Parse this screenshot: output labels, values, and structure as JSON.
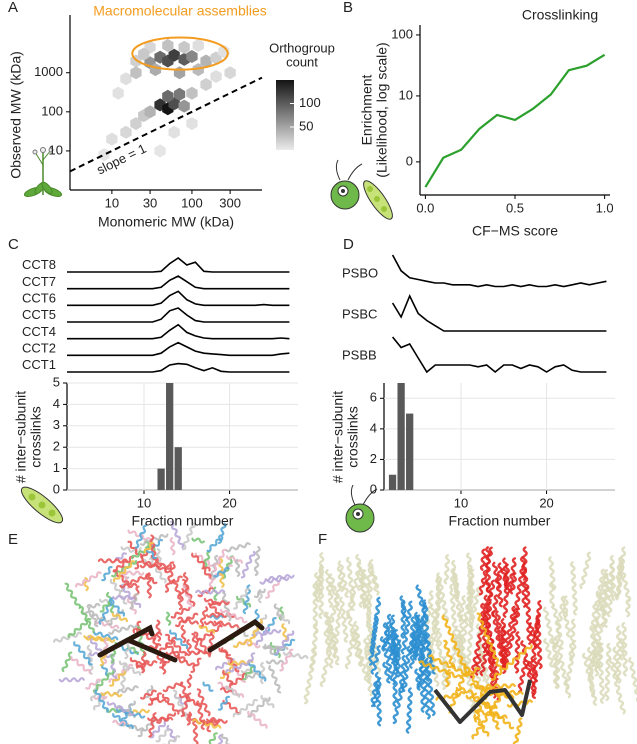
{
  "chart_data": [
    {
      "panel": "A",
      "type": "hexbin",
      "title": "Macromolecular assemblies",
      "x_label": "Monomeric MW (kDa)",
      "y_label": "Observed MW (kDa)",
      "x": [
        20,
        30,
        40,
        50,
        60,
        80,
        100,
        150,
        200,
        30,
        50,
        80,
        120,
        40,
        50,
        60,
        80,
        50,
        70,
        10,
        15,
        20,
        25,
        30,
        100,
        150,
        200,
        8,
        40,
        60,
        100,
        300,
        12,
        15,
        20,
        120,
        35,
        70,
        25,
        250
      ],
      "y": [
        2000,
        1800,
        2500,
        2000,
        2800,
        2200,
        2600,
        2000,
        2400,
        4500,
        5000,
        4500,
        5000,
        150,
        120,
        160,
        140,
        250,
        280,
        20,
        30,
        50,
        80,
        100,
        300,
        500,
        800,
        8,
        10,
        30,
        50,
        1000,
        300,
        700,
        1000,
        1200,
        1200,
        1000,
        3000,
        3500
      ],
      "counts": [
        20,
        60,
        90,
        110,
        120,
        100,
        70,
        40,
        20,
        15,
        30,
        25,
        10,
        130,
        150,
        110,
        60,
        90,
        80,
        10,
        15,
        20,
        25,
        40,
        30,
        20,
        10,
        5,
        5,
        8,
        8,
        15,
        8,
        10,
        30,
        35,
        45,
        50,
        25,
        8
      ],
      "xlim": [
        3,
        750
      ],
      "ylim": [
        1,
        30000
      ],
      "xticks": [
        10,
        30,
        100,
        300
      ],
      "yticks": [
        10,
        100,
        1000
      ],
      "log_x": true,
      "log_y": true,
      "colorbar": {
        "title": "Orthogroup\ncount",
        "lim": [
          1,
          150
        ],
        "ticks": [
          100,
          50
        ]
      },
      "reference_line": {
        "label": "slope = 1",
        "slope": 1
      },
      "highlight": {
        "x": [
          18,
          280
        ],
        "y": [
          1200,
          8000
        ],
        "color": "#f39c1f"
      }
    },
    {
      "panel": "B",
      "type": "line",
      "title": "Crosslinking",
      "x_label": "CF−MS score",
      "y_label": "Enrichment\n(Likelihood, log scale)",
      "x": [
        0,
        0.1,
        0.2,
        0.3,
        0.4,
        0.5,
        0.6,
        0.7,
        0.8,
        0.9,
        1
      ],
      "values": [
        -0.6,
        0.16,
        0.56,
        2.3,
        4.5,
        3.6,
        5.9,
        10.6,
        27,
        32,
        48
      ],
      "color": "#2ca02c",
      "xlim": [
        -0.03,
        1.03
      ],
      "ylim": [
        -0.7,
        144
      ],
      "y_scale": "log1p",
      "xticks": [
        {
          "value": 0,
          "label": "0.0"
        },
        {
          "value": 0.5,
          "label": "0.5"
        },
        {
          "value": 1,
          "label": "1.0"
        }
      ],
      "yticks": [
        0,
        10,
        100
      ]
    },
    {
      "panel": "C",
      "type": "ridgeline",
      "x": [
        1,
        2,
        3,
        4,
        5,
        6,
        7,
        8,
        9,
        10,
        11,
        12,
        13,
        14,
        15,
        16,
        17,
        18,
        19,
        20,
        21,
        22,
        23,
        24,
        25,
        26,
        27
      ],
      "xlim": [
        1,
        28
      ],
      "color": "#000000",
      "series": [
        {
          "name": "CCT8",
          "values": [
            0,
            0,
            0,
            0,
            0,
            0,
            0,
            0,
            0,
            0,
            0,
            0.05,
            0.6,
            1,
            0.5,
            0.7,
            0.05,
            0,
            0,
            0,
            0,
            0,
            0,
            0,
            0,
            0,
            0
          ]
        },
        {
          "name": "CCT7",
          "values": [
            0,
            0,
            0,
            0,
            0,
            0,
            0,
            0,
            0,
            0,
            0,
            0.1,
            0.6,
            0.9,
            0.5,
            0.1,
            0,
            0,
            0,
            0,
            0,
            0,
            0,
            0,
            0,
            0,
            0
          ]
        },
        {
          "name": "CCT6",
          "values": [
            0,
            0,
            0,
            0,
            0,
            0,
            0,
            0,
            0,
            0,
            0,
            0.15,
            0.7,
            1,
            0.4,
            0.1,
            0,
            0,
            0,
            0,
            0,
            0,
            0,
            0.05,
            0,
            0,
            0
          ]
        },
        {
          "name": "CCT5",
          "values": [
            0,
            0,
            0,
            0,
            0,
            0,
            0,
            0,
            0,
            0,
            0,
            0.2,
            0.8,
            1,
            0.5,
            0.1,
            0,
            0,
            0,
            0,
            0,
            0,
            0,
            0,
            0,
            0,
            0
          ]
        },
        {
          "name": "CCT4",
          "values": [
            0,
            0,
            0,
            0,
            0,
            0,
            0,
            0,
            0,
            0,
            0,
            0.1,
            0.6,
            1,
            0.45,
            0.2,
            0.05,
            0,
            0,
            0,
            0,
            0,
            0,
            0,
            0,
            0.05,
            0
          ]
        },
        {
          "name": "CCT2",
          "values": [
            0,
            0,
            0,
            0,
            0,
            0,
            0,
            0,
            0,
            0,
            0,
            0.15,
            0.6,
            0.9,
            0.6,
            0.3,
            0.15,
            0.1,
            0.05,
            0,
            0,
            0,
            0,
            0,
            0,
            0.1,
            0.15
          ]
        },
        {
          "name": "CCT1",
          "values": [
            0,
            0,
            0,
            0,
            0,
            0,
            0,
            0,
            0,
            0,
            0,
            0.1,
            0.5,
            0.6,
            0.55,
            0.3,
            0.1,
            0.3,
            0.05,
            0,
            0,
            0,
            0,
            0,
            0,
            0,
            0
          ]
        }
      ]
    },
    {
      "type": "bar",
      "x": [
        12,
        13,
        14
      ],
      "values": [
        1,
        5,
        2
      ],
      "color": "#595959",
      "xlim": [
        1,
        28
      ],
      "xticks": [
        10,
        20
      ],
      "ylim": [
        0,
        5
      ],
      "yticks": [
        0,
        1,
        2,
        3,
        4,
        5
      ],
      "x_label": "Fraction number",
      "y_label": "# inter−subunit\ncrosslinks",
      "grid": true
    },
    {
      "panel": "D",
      "type": "ridgeline",
      "x": [
        2,
        3,
        4,
        5,
        6,
        7,
        8,
        9,
        10,
        11,
        12,
        13,
        14,
        15,
        16,
        17,
        18,
        19,
        20,
        21,
        22,
        23,
        24,
        25,
        26,
        27
      ],
      "xlim": [
        1,
        28
      ],
      "color": "#000000",
      "series": [
        {
          "name": "PSBO",
          "values": [
            1,
            0.55,
            0.35,
            0.3,
            0.25,
            0.2,
            0.2,
            0.15,
            0.15,
            0.15,
            0.1,
            0.15,
            0.1,
            0.1,
            0.15,
            0.1,
            0.15,
            0.1,
            0.1,
            0.15,
            0.1,
            0.15,
            0.2,
            0.15,
            0.2,
            0.25
          ]
        },
        {
          "name": "PSBC",
          "values": [
            0.8,
            0.4,
            1,
            0.5,
            0.3,
            0.15,
            0,
            0,
            0,
            0,
            0,
            0,
            0,
            0,
            0,
            0,
            0,
            0,
            0,
            0,
            0,
            0,
            0,
            0,
            0,
            0
          ]
        },
        {
          "name": "PSBB",
          "values": [
            1,
            0.7,
            0.8,
            0.4,
            0,
            0.2,
            0.2,
            0.2,
            0.2,
            0.2,
            0.15,
            0.2,
            0,
            0.2,
            0.2,
            0.1,
            0.2,
            0.15,
            0,
            0.15,
            0.2,
            0.05,
            0,
            0,
            0,
            0
          ]
        }
      ]
    },
    {
      "type": "bar",
      "x": [
        2,
        3,
        4
      ],
      "values": [
        1,
        7,
        5
      ],
      "color": "#595959",
      "xlim": [
        1,
        28
      ],
      "xticks": [
        10,
        20
      ],
      "ylim": [
        0,
        7
      ],
      "yticks": [
        0,
        2,
        4,
        6
      ],
      "x_label": "Fraction number",
      "y_label": "# inter−subunit\ncrosslinks",
      "grid": true
    }
  ],
  "structure_panels": [
    "E",
    "F"
  ]
}
